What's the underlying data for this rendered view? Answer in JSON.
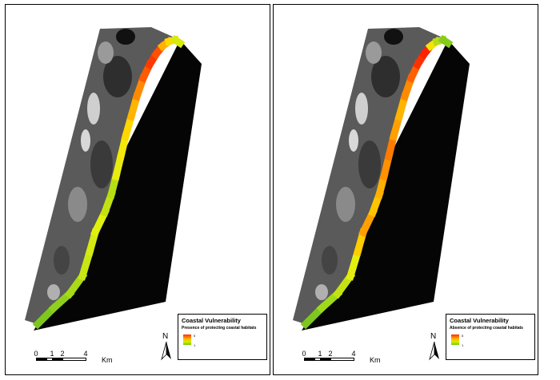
{
  "panels": [
    {
      "legend": {
        "title": "Coastal Vulnerability",
        "subtitle": "Presence of protecting coastal habitats",
        "max_label": "5",
        "min_label": "1"
      },
      "north_label": "N",
      "scale": {
        "ticks": [
          "0",
          "1",
          "2",
          "4"
        ],
        "unit": "Km"
      },
      "coast_colors": [
        "#7ec81e",
        "#8fd01c",
        "#a8da18",
        "#c8e614",
        "#d4ea10",
        "#e2f00e",
        "#c4e212",
        "#b6de14",
        "#e8ec10",
        "#f4e808",
        "#ffd600",
        "#ffb400",
        "#ff8a00",
        "#ff5a00",
        "#ff3800",
        "#ff5000",
        "#ffb000",
        "#ffd800",
        "#d6ea10",
        "#98d21a"
      ]
    },
    {
      "legend": {
        "title": "Coastal Vulnerability",
        "subtitle": "Absence of protecting coastal habitats",
        "max_label": "5",
        "min_label": "1"
      },
      "north_label": "N",
      "scale": {
        "ticks": [
          "0",
          "1",
          "2",
          "4"
        ],
        "unit": "Km"
      },
      "coast_colors": [
        "#7ec81e",
        "#a0d81a",
        "#c4e212",
        "#e4ee0e",
        "#ffcc00",
        "#ffa000",
        "#ffc400",
        "#ffb000",
        "#ff9000",
        "#ff7a00",
        "#ffa000",
        "#ffb400",
        "#ff8a00",
        "#ff6000",
        "#ff3000",
        "#ff2200",
        "#f0e40a",
        "#b8dc14",
        "#86cc1c",
        "#70c41e"
      ]
    },
    null
  ],
  "colors": {
    "sea": "#050505",
    "land": "#5a5a5a"
  }
}
